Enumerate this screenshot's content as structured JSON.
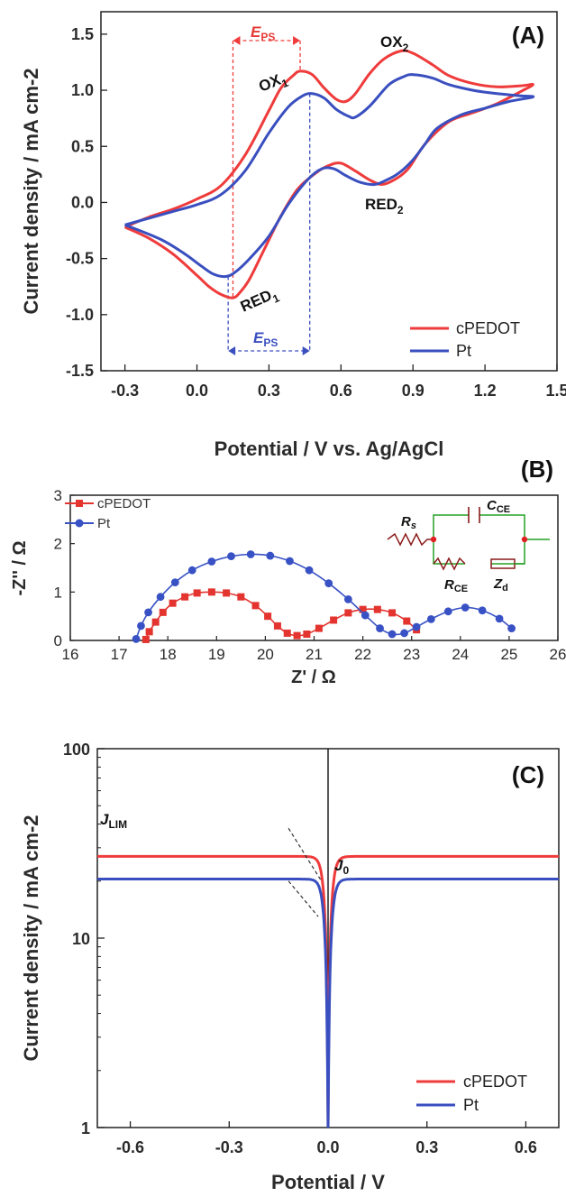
{
  "chart_data": [
    {
      "panel": "(A)",
      "type": "line",
      "xlabel": "Potential / V vs. Ag/AgCl",
      "ylabel": "Current density / mA cm-2",
      "xlim": [
        -0.4,
        1.5
      ],
      "ylim": [
        -1.5,
        1.7
      ],
      "x_ticks": [
        "-0.3",
        "0.0",
        "0.3",
        "0.6",
        "0.9",
        "1.2",
        "1.5"
      ],
      "y_ticks": [
        "-1.5",
        "-1.0",
        "-0.5",
        "0.0",
        "0.5",
        "1.0",
        "1.5"
      ],
      "legend_placement": "bottom-right",
      "colors": {
        "cPEDOT": "#ef3b3b",
        "Pt": "#3a4fbf"
      },
      "annotations": {
        "ox1": "OX",
        "ox1_sub": "1",
        "ox2": "OX",
        "ox2_sub": "2",
        "red1": "RED",
        "red1_sub": "1",
        "red2": "RED",
        "red2_sub": "2",
        "eps": "E",
        "eps_sub": "PS"
      },
      "eps_markers": {
        "cPEDOT": {
          "from": 0.15,
          "to": 0.43
        },
        "Pt": {
          "from": 0.13,
          "to": 0.47
        }
      },
      "series": [
        {
          "name": "cPEDOT",
          "anodic": [
            [
              -0.3,
              -0.22
            ],
            [
              -0.2,
              -0.13
            ],
            [
              -0.1,
              -0.06
            ],
            [
              0.0,
              0.03
            ],
            [
              0.1,
              0.15
            ],
            [
              0.2,
              0.42
            ],
            [
              0.3,
              0.82
            ],
            [
              0.35,
              1.02
            ],
            [
              0.4,
              1.13
            ],
            [
              0.43,
              1.17
            ],
            [
              0.48,
              1.14
            ],
            [
              0.53,
              1.02
            ],
            [
              0.58,
              0.92
            ],
            [
              0.62,
              0.9
            ],
            [
              0.66,
              0.97
            ],
            [
              0.72,
              1.15
            ],
            [
              0.78,
              1.28
            ],
            [
              0.85,
              1.35
            ],
            [
              0.9,
              1.33
            ],
            [
              0.98,
              1.23
            ],
            [
              1.05,
              1.13
            ],
            [
              1.15,
              1.06
            ],
            [
              1.25,
              1.03
            ],
            [
              1.35,
              1.04
            ],
            [
              1.4,
              1.05
            ]
          ],
          "cathodic": [
            [
              1.4,
              1.05
            ],
            [
              1.35,
              0.99
            ],
            [
              1.25,
              0.88
            ],
            [
              1.15,
              0.8
            ],
            [
              1.05,
              0.72
            ],
            [
              0.95,
              0.52
            ],
            [
              0.88,
              0.3
            ],
            [
              0.82,
              0.2
            ],
            [
              0.77,
              0.16
            ],
            [
              0.72,
              0.2
            ],
            [
              0.66,
              0.28
            ],
            [
              0.6,
              0.35
            ],
            [
              0.55,
              0.33
            ],
            [
              0.5,
              0.27
            ],
            [
              0.42,
              0.12
            ],
            [
              0.35,
              -0.12
            ],
            [
              0.28,
              -0.42
            ],
            [
              0.22,
              -0.68
            ],
            [
              0.18,
              -0.8
            ],
            [
              0.15,
              -0.85
            ],
            [
              0.1,
              -0.82
            ],
            [
              0.05,
              -0.75
            ],
            [
              0.0,
              -0.65
            ],
            [
              -0.1,
              -0.46
            ],
            [
              -0.2,
              -0.32
            ],
            [
              -0.3,
              -0.22
            ]
          ]
        },
        {
          "name": "Pt",
          "anodic": [
            [
              -0.3,
              -0.2
            ],
            [
              -0.2,
              -0.14
            ],
            [
              -0.1,
              -0.08
            ],
            [
              0.0,
              -0.02
            ],
            [
              0.1,
              0.07
            ],
            [
              0.2,
              0.28
            ],
            [
              0.3,
              0.62
            ],
            [
              0.38,
              0.85
            ],
            [
              0.44,
              0.95
            ],
            [
              0.48,
              0.97
            ],
            [
              0.53,
              0.93
            ],
            [
              0.58,
              0.83
            ],
            [
              0.63,
              0.77
            ],
            [
              0.66,
              0.76
            ],
            [
              0.72,
              0.86
            ],
            [
              0.8,
              1.05
            ],
            [
              0.86,
              1.12
            ],
            [
              0.9,
              1.14
            ],
            [
              0.98,
              1.11
            ],
            [
              1.05,
              1.05
            ],
            [
              1.15,
              1.0
            ],
            [
              1.25,
              0.97
            ],
            [
              1.35,
              0.95
            ],
            [
              1.4,
              0.94
            ]
          ],
          "cathodic": [
            [
              1.4,
              0.94
            ],
            [
              1.3,
              0.9
            ],
            [
              1.2,
              0.84
            ],
            [
              1.1,
              0.78
            ],
            [
              1.0,
              0.66
            ],
            [
              0.95,
              0.52
            ],
            [
              0.9,
              0.38
            ],
            [
              0.84,
              0.26
            ],
            [
              0.79,
              0.2
            ],
            [
              0.74,
              0.16
            ],
            [
              0.68,
              0.18
            ],
            [
              0.62,
              0.24
            ],
            [
              0.57,
              0.3
            ],
            [
              0.52,
              0.3
            ],
            [
              0.46,
              0.2
            ],
            [
              0.38,
              -0.02
            ],
            [
              0.3,
              -0.3
            ],
            [
              0.22,
              -0.5
            ],
            [
              0.16,
              -0.62
            ],
            [
              0.12,
              -0.66
            ],
            [
              0.07,
              -0.64
            ],
            [
              0.02,
              -0.57
            ],
            [
              -0.05,
              -0.46
            ],
            [
              -0.15,
              -0.33
            ],
            [
              -0.3,
              -0.2
            ]
          ]
        }
      ]
    },
    {
      "panel": "(B)",
      "type": "scatter",
      "xlabel": "Z' / Ω",
      "ylabel": "-Z'' / Ω",
      "xlim": [
        16,
        26
      ],
      "ylim": [
        0,
        3
      ],
      "x_ticks": [
        "16",
        "17",
        "18",
        "19",
        "20",
        "21",
        "22",
        "23",
        "24",
        "25",
        "26"
      ],
      "y_ticks": [
        "0",
        "1",
        "2",
        "3"
      ],
      "legend_placement": "top-left",
      "colors": {
        "cPEDOT": "#e3342f",
        "Pt": "#3851c4",
        "circuit_wire": "#27a027",
        "circuit_element": "#8b1a1a",
        "circuit_node": "#e02020"
      },
      "circuit_labels": {
        "rs": "R",
        "rs_sub": "s",
        "cce": "C",
        "cce_sub": "CE",
        "rce": "R",
        "rce_sub": "CE",
        "zd": "Z",
        "zd_sub": "d"
      },
      "series": [
        {
          "name": "cPEDOT",
          "marker": "square",
          "points": [
            [
              17.55,
              0.02
            ],
            [
              17.62,
              0.18
            ],
            [
              17.75,
              0.38
            ],
            [
              17.9,
              0.58
            ],
            [
              18.1,
              0.77
            ],
            [
              18.35,
              0.9
            ],
            [
              18.6,
              0.98
            ],
            [
              18.9,
              1.0
            ],
            [
              19.2,
              0.98
            ],
            [
              19.5,
              0.9
            ],
            [
              19.8,
              0.72
            ],
            [
              20.05,
              0.5
            ],
            [
              20.25,
              0.3
            ],
            [
              20.45,
              0.15
            ],
            [
              20.65,
              0.1
            ],
            [
              20.85,
              0.13
            ],
            [
              21.1,
              0.25
            ],
            [
              21.4,
              0.42
            ],
            [
              21.7,
              0.57
            ],
            [
              22.0,
              0.64
            ],
            [
              22.3,
              0.64
            ],
            [
              22.6,
              0.57
            ],
            [
              22.9,
              0.4
            ],
            [
              23.1,
              0.22
            ]
          ]
        },
        {
          "name": "Pt",
          "marker": "circle",
          "points": [
            [
              17.35,
              0.03
            ],
            [
              17.45,
              0.3
            ],
            [
              17.6,
              0.58
            ],
            [
              17.85,
              0.9
            ],
            [
              18.15,
              1.2
            ],
            [
              18.5,
              1.45
            ],
            [
              18.9,
              1.63
            ],
            [
              19.3,
              1.74
            ],
            [
              19.7,
              1.78
            ],
            [
              20.1,
              1.75
            ],
            [
              20.5,
              1.64
            ],
            [
              20.9,
              1.45
            ],
            [
              21.3,
              1.18
            ],
            [
              21.7,
              0.85
            ],
            [
              22.05,
              0.52
            ],
            [
              22.35,
              0.25
            ],
            [
              22.6,
              0.13
            ],
            [
              22.85,
              0.15
            ],
            [
              23.1,
              0.28
            ],
            [
              23.4,
              0.44
            ],
            [
              23.75,
              0.6
            ],
            [
              24.1,
              0.68
            ],
            [
              24.45,
              0.62
            ],
            [
              24.8,
              0.45
            ],
            [
              25.05,
              0.25
            ]
          ]
        }
      ]
    },
    {
      "panel": "(C)",
      "type": "line",
      "xlabel": "Potential / V",
      "ylabel": "Current density / mA cm-2",
      "xlim": [
        -0.7,
        0.7
      ],
      "ylim": [
        1,
        100
      ],
      "y_scale": "log",
      "x_ticks": [
        "-0.6",
        "-0.3",
        "0.0",
        "0.3",
        "0.6"
      ],
      "y_ticks": [
        "1",
        "10",
        "100"
      ],
      "legend_placement": "bottom-right",
      "colors": {
        "cPEDOT": "#ef3b3b",
        "Pt": "#3a4fbf"
      },
      "annotations": {
        "jlim": "J",
        "jlim_sub": "LIM",
        "j0": "J",
        "j0_sub": "0"
      },
      "series": [
        {
          "name": "cPEDOT",
          "j_lim": 27
        },
        {
          "name": "Pt",
          "j_lim": 20.5
        }
      ]
    }
  ]
}
